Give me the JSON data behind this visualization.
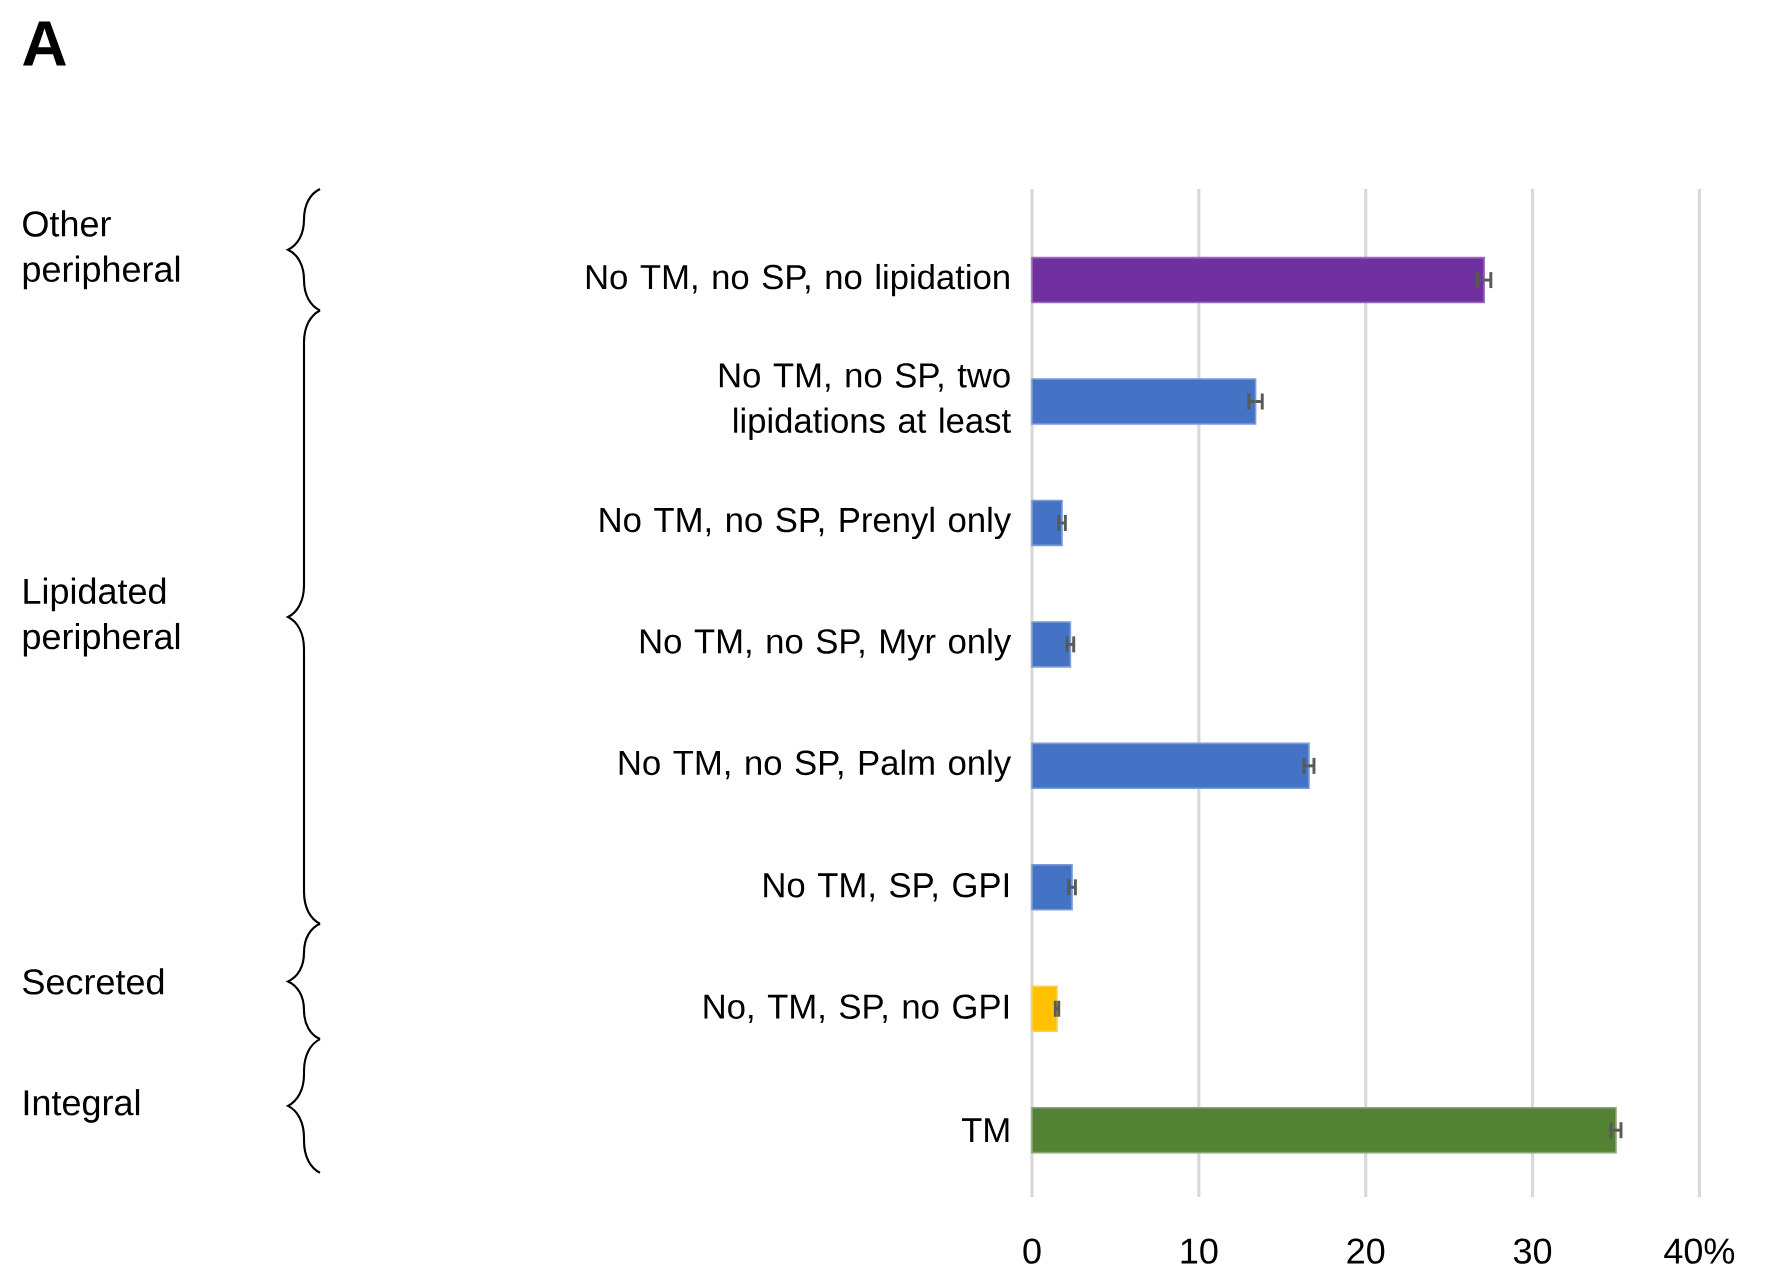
{
  "chart_data": {
    "type": "bar",
    "title": "A",
    "orientation": "horizontal",
    "categories": [
      "No TM, no SP, no lipidation",
      "No TM, no SP, two lipidations at least",
      "No TM, no SP, Prenyl only",
      "No TM, no SP, Myr only",
      "No TM, no SP, Palm only",
      "No TM, SP, GPI",
      "No, TM, SP, no GPI",
      "TM"
    ],
    "values": [
      27.1,
      13.4,
      1.8,
      2.3,
      16.6,
      2.4,
      1.5,
      35.0
    ],
    "errors": [
      0.4,
      0.4,
      0.2,
      0.2,
      0.3,
      0.2,
      0.1,
      0.3
    ],
    "colors": [
      "#7030a0",
      "#4472c4",
      "#4472c4",
      "#4472c4",
      "#4472c4",
      "#4472c4",
      "#ffc000",
      "#548235"
    ],
    "xlim": [
      0,
      40
    ],
    "xticks": [
      0,
      10,
      20,
      30,
      {
        "value": 40,
        "label": "40%"
      }
    ],
    "grid": "x",
    "annotations": [
      "Other peripheral",
      "Lipidated peripheral",
      "Secreted",
      "Integral"
    ]
  }
}
